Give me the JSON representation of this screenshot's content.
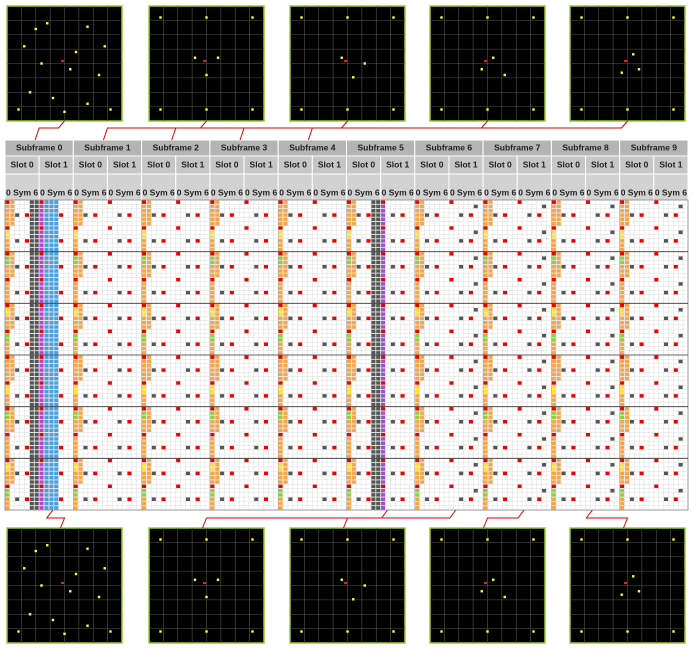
{
  "subframes": [
    {
      "label": "Subframe 0",
      "slots": [
        {
          "label": "Slot 0",
          "symbols": "0 Sym 6"
        },
        {
          "label": "Slot 1",
          "symbols": "0 Sym 6"
        }
      ]
    },
    {
      "label": "Subframe 1",
      "slots": [
        {
          "label": "Slot 0",
          "symbols": "0 Sym 6"
        },
        {
          "label": "Slot 1",
          "symbols": "0 Sym 6"
        }
      ]
    },
    {
      "label": "Subframe 2",
      "slots": [
        {
          "label": "Slot 0",
          "symbols": "0 Sym 6"
        },
        {
          "label": "Slot 1",
          "symbols": "0 Sym 6"
        }
      ]
    },
    {
      "label": "Subframe 3",
      "slots": [
        {
          "label": "Slot 0",
          "symbols": "0 Sym 6"
        },
        {
          "label": "Slot 1",
          "symbols": "0 Sym 6"
        }
      ]
    },
    {
      "label": "Subframe 4",
      "slots": [
        {
          "label": "Slot 0",
          "symbols": "0 Sym 6"
        },
        {
          "label": "Slot 1",
          "symbols": "0 Sym 6"
        }
      ]
    },
    {
      "label": "Subframe 5",
      "slots": [
        {
          "label": "Slot 0",
          "symbols": "0 Sym 6"
        },
        {
          "label": "Slot 1",
          "symbols": "0 Sym 6"
        }
      ]
    },
    {
      "label": "Subframe 6",
      "slots": [
        {
          "label": "Slot 0",
          "symbols": "0 Sym 6"
        },
        {
          "label": "Slot 1",
          "symbols": "0 Sym 6"
        }
      ]
    },
    {
      "label": "Subframe 7",
      "slots": [
        {
          "label": "Slot 0",
          "symbols": "0 Sym 6"
        },
        {
          "label": "Slot 1",
          "symbols": "0 Sym 6"
        }
      ]
    },
    {
      "label": "Subframe 8",
      "slots": [
        {
          "label": "Slot 0",
          "symbols": "0 Sym 6"
        },
        {
          "label": "Slot 1",
          "symbols": "0 Sym 6"
        }
      ]
    },
    {
      "label": "Subframe 9",
      "slots": [
        {
          "label": "Slot 0",
          "symbols": "0 Sym 6"
        },
        {
          "label": "Slot 1",
          "symbols": "0 Sym 6"
        }
      ]
    }
  ]
}
